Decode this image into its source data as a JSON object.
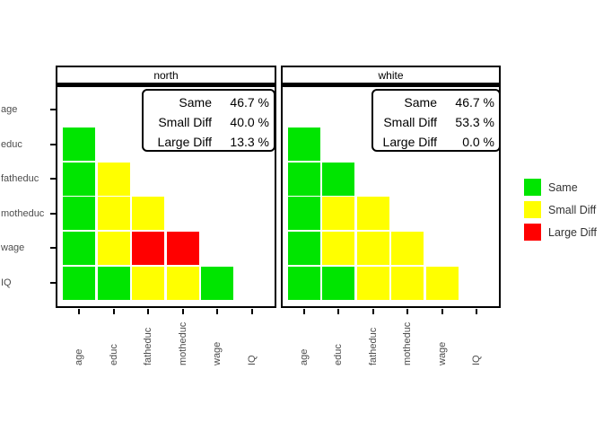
{
  "chart_data": {
    "type": "heatmap",
    "description": "Faceted lower-triangle comparison heatmap of variable pairs, colored by difference category",
    "variables": [
      "age",
      "educ",
      "fatheduc",
      "motheduc",
      "wage",
      "IQ"
    ],
    "categories": [
      {
        "name": "Same",
        "color": "#00E500"
      },
      {
        "name": "Small Diff",
        "color": "#FFFF00"
      },
      {
        "name": "Large Diff",
        "color": "#FF0000"
      }
    ],
    "legend_position": "right",
    "panels": [
      {
        "title": "north",
        "stats": [
          {
            "label": "Same",
            "value": "46.7 %"
          },
          {
            "label": "Small Diff",
            "value": "40.0 %"
          },
          {
            "label": "Large Diff",
            "value": "13.3 %"
          }
        ],
        "rows": [
          {
            "var": "educ",
            "values": [
              "Same"
            ]
          },
          {
            "var": "fatheduc",
            "values": [
              "Same",
              "Small Diff"
            ]
          },
          {
            "var": "motheduc",
            "values": [
              "Same",
              "Small Diff",
              "Small Diff"
            ]
          },
          {
            "var": "wage",
            "values": [
              "Same",
              "Small Diff",
              "Large Diff",
              "Large Diff"
            ]
          },
          {
            "var": "IQ",
            "values": [
              "Same",
              "Same",
              "Small Diff",
              "Small Diff",
              "Same"
            ]
          }
        ]
      },
      {
        "title": "white",
        "stats": [
          {
            "label": "Same",
            "value": "46.7 %"
          },
          {
            "label": "Small Diff",
            "value": "53.3 %"
          },
          {
            "label": "Large Diff",
            "value": "0.0 %"
          }
        ],
        "rows": [
          {
            "var": "educ",
            "values": [
              "Same"
            ]
          },
          {
            "var": "fatheduc",
            "values": [
              "Same",
              "Same"
            ]
          },
          {
            "var": "motheduc",
            "values": [
              "Same",
              "Small Diff",
              "Small Diff"
            ]
          },
          {
            "var": "wage",
            "values": [
              "Same",
              "Small Diff",
              "Small Diff",
              "Small Diff"
            ]
          },
          {
            "var": "IQ",
            "values": [
              "Same",
              "Same",
              "Small Diff",
              "Small Diff",
              "Small Diff"
            ]
          }
        ]
      }
    ]
  }
}
